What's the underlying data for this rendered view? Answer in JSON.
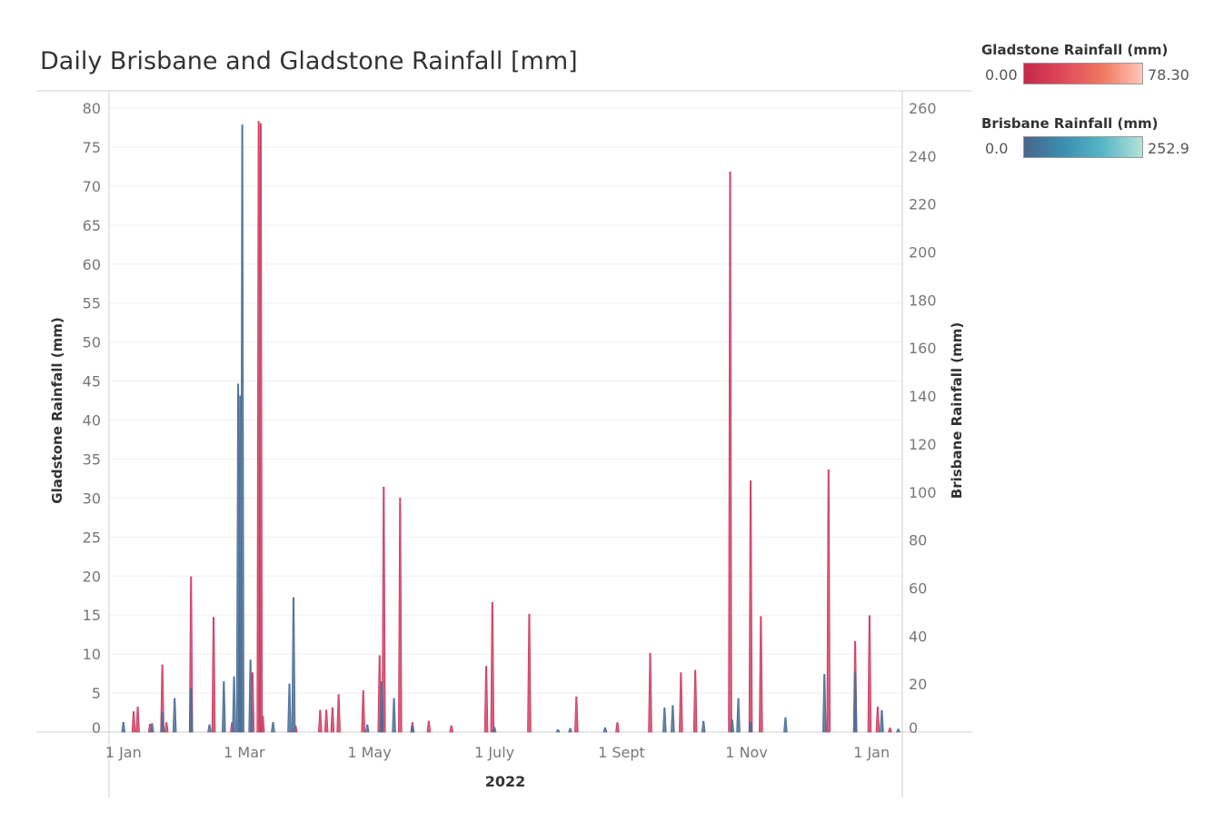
{
  "title": "Daily Brisbane and Gladstone Rainfall [mm]",
  "legend": [
    {
      "title": "Gladstone Rainfall (mm)",
      "min_label": "0.00",
      "max_label": "78.30",
      "gradient": [
        "#c5284a",
        "#e04a5a",
        "#f07860",
        "#ffc7b8"
      ]
    },
    {
      "title": "Brisbane Rainfall (mm)",
      "min_label": "0.0",
      "max_label": "252.9",
      "gradient": [
        "#48668c",
        "#3a8fb0",
        "#56b6c6",
        "#b6e2da"
      ]
    }
  ],
  "colors": {
    "gladstone": "#cc3a5f",
    "brisbane": "#4a6d95",
    "grid": "#efefef",
    "axis": "#cfcfcf",
    "tick_text": "#777777"
  },
  "chart_data": {
    "type": "area",
    "x_label": "2022",
    "x_ticks": [
      {
        "date": "2022-01-01",
        "label": "1 Jan"
      },
      {
        "date": "2022-03-01",
        "label": "1 Mar"
      },
      {
        "date": "2022-05-01",
        "label": "1 May"
      },
      {
        "date": "2022-07-01",
        "label": "1 July"
      },
      {
        "date": "2022-09-01",
        "label": "1 Sept"
      },
      {
        "date": "2022-11-01",
        "label": "1 Nov"
      },
      {
        "date": "2023-01-01",
        "label": "1 Jan"
      }
    ],
    "x_range": [
      "2021-12-25",
      "2023-01-16"
    ],
    "y_left": {
      "label": "Gladstone Rainfall (mm)",
      "range": [
        0,
        80
      ],
      "ticks": [
        0,
        5,
        10,
        15,
        20,
        25,
        30,
        35,
        40,
        45,
        50,
        55,
        60,
        65,
        70,
        75,
        80
      ]
    },
    "y_right": {
      "label": "Brisbane Rainfall (mm)",
      "range": [
        0,
        260
      ],
      "ticks": [
        0,
        20,
        40,
        60,
        80,
        100,
        120,
        140,
        160,
        180,
        200,
        220,
        240,
        260
      ]
    },
    "series": [
      {
        "name": "Gladstone Rainfall (mm)",
        "axis": "left",
        "color": "#cc3a5f",
        "points": [
          [
            "2022-01-06",
            2.6
          ],
          [
            "2022-01-08",
            3.2
          ],
          [
            "2022-01-14",
            1.0
          ],
          [
            "2022-01-20",
            8.6
          ],
          [
            "2022-01-22",
            1.2
          ],
          [
            "2022-02-03",
            19.9
          ],
          [
            "2022-02-14",
            14.7
          ],
          [
            "2022-02-23",
            1.2
          ],
          [
            "2022-03-05",
            7.6
          ],
          [
            "2022-03-08",
            78.3
          ],
          [
            "2022-03-09",
            78.0
          ],
          [
            "2022-03-10",
            2.0
          ],
          [
            "2022-03-26",
            0.8
          ],
          [
            "2022-04-07",
            2.8
          ],
          [
            "2022-04-10",
            2.8
          ],
          [
            "2022-04-13",
            3.1
          ],
          [
            "2022-04-16",
            4.8
          ],
          [
            "2022-04-28",
            5.3
          ],
          [
            "2022-05-06",
            9.8
          ],
          [
            "2022-05-08",
            31.4
          ],
          [
            "2022-05-16",
            30.0
          ],
          [
            "2022-05-22",
            1.2
          ],
          [
            "2022-05-30",
            1.4
          ],
          [
            "2022-06-10",
            0.8
          ],
          [
            "2022-06-27",
            8.4
          ],
          [
            "2022-06-30",
            16.6
          ],
          [
            "2022-07-18",
            15.1
          ],
          [
            "2022-08-10",
            4.5
          ],
          [
            "2022-08-30",
            1.2
          ],
          [
            "2022-09-15",
            10.1
          ],
          [
            "2022-09-30",
            7.6
          ],
          [
            "2022-10-07",
            7.9
          ],
          [
            "2022-10-24",
            71.8
          ],
          [
            "2022-11-03",
            32.2
          ],
          [
            "2022-11-08",
            14.8
          ],
          [
            "2022-12-11",
            33.6
          ],
          [
            "2022-12-24",
            11.6
          ],
          [
            "2022-12-31",
            14.9
          ],
          [
            "2023-01-04",
            3.2
          ],
          [
            "2023-01-10",
            0.5
          ]
        ]
      },
      {
        "name": "Brisbane Rainfall (mm)",
        "axis": "right",
        "color": "#4a6d95",
        "points": [
          [
            "2022-01-01",
            4.0
          ],
          [
            "2022-01-15",
            3.5
          ],
          [
            "2022-01-20",
            8.0
          ],
          [
            "2022-01-26",
            14.0
          ],
          [
            "2022-02-03",
            18.0
          ],
          [
            "2022-02-12",
            3.0
          ],
          [
            "2022-02-19",
            21.0
          ],
          [
            "2022-02-24",
            23.0
          ],
          [
            "2022-02-26",
            145.0
          ],
          [
            "2022-02-27",
            140.0
          ],
          [
            "2022-02-28",
            253.0
          ],
          [
            "2022-03-04",
            30.0
          ],
          [
            "2022-03-15",
            4.0
          ],
          [
            "2022-03-23",
            20.0
          ],
          [
            "2022-03-25",
            56.0
          ],
          [
            "2022-04-30",
            3.0
          ],
          [
            "2022-05-07",
            21.0
          ],
          [
            "2022-05-13",
            14.0
          ],
          [
            "2022-05-22",
            2.5
          ],
          [
            "2022-07-01",
            2.0
          ],
          [
            "2022-08-01",
            1.0
          ],
          [
            "2022-08-07",
            1.5
          ],
          [
            "2022-08-24",
            1.8
          ],
          [
            "2022-09-22",
            10.0
          ],
          [
            "2022-09-26",
            11.0
          ],
          [
            "2022-10-11",
            4.5
          ],
          [
            "2022-10-25",
            5.0
          ],
          [
            "2022-10-28",
            14.0
          ],
          [
            "2022-11-03",
            4.0
          ],
          [
            "2022-11-20",
            6.0
          ],
          [
            "2022-12-09",
            24.0
          ],
          [
            "2022-12-24",
            25.0
          ],
          [
            "2023-01-06",
            9.0
          ],
          [
            "2023-01-14",
            1.2
          ]
        ]
      }
    ]
  }
}
